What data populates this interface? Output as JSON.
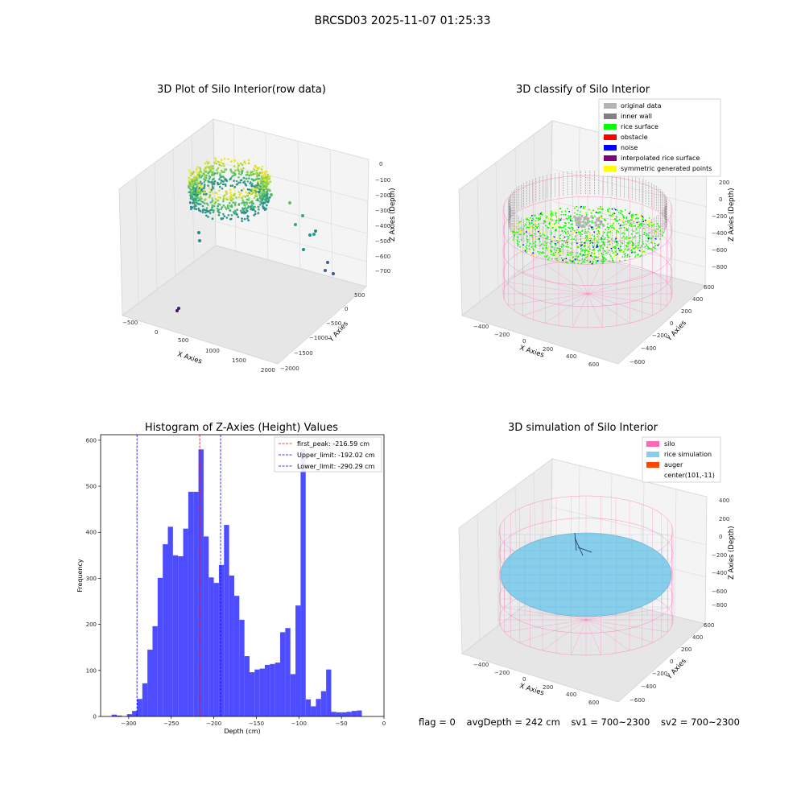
{
  "figure_title": "BRCSD03 2025-11-07 01:25:33",
  "status": {
    "flag": "flag = 0",
    "avg_depth": "avgDepth = 242 cm",
    "sv1": "sv1 = 700~2300",
    "sv2": "sv2 = 700~2300"
  },
  "chart_data": [
    {
      "type": "scatter",
      "title": "3D Plot of Silo Interior(row data)",
      "xlabel": "X Axies",
      "ylabel": "Y Axies",
      "zlabel": "Z Axies (Depth)",
      "x_ticks": [
        "−500",
        "0",
        "500",
        "1000",
        "1500",
        "2000"
      ],
      "y_ticks": [
        "500",
        "0",
        "−500",
        "−1000",
        "−1500",
        "−2000"
      ],
      "z_ticks": [
        "0",
        "−100",
        "−200",
        "−300",
        "−400",
        "−500",
        "−600",
        "−700"
      ],
      "colormap": [
        "#440154",
        "#3b528b",
        "#21918c",
        "#5ec962",
        "#fde725"
      ]
    },
    {
      "type": "scatter",
      "title": "3D classify of Silo Interior",
      "xlabel": "X Axies",
      "ylabel": "Y Axies",
      "zlabel": "Z Axies (Depth)",
      "x_ticks": [
        "−400",
        "−200",
        "0",
        "200",
        "400",
        "600"
      ],
      "y_ticks": [
        "600",
        "400",
        "200",
        "0",
        "−200",
        "−400",
        "−600"
      ],
      "z_ticks": [
        "200",
        "0",
        "−200",
        "−400",
        "−600",
        "−800"
      ],
      "legend": [
        {
          "label": "original data",
          "color": "#b4b4b4"
        },
        {
          "label": "inner wall",
          "color": "#808080"
        },
        {
          "label": "rice surface",
          "color": "#00ff00"
        },
        {
          "label": "obstacle",
          "color": "#ff0000"
        },
        {
          "label": "noise",
          "color": "#0000ff"
        },
        {
          "label": "interpolated rice surface",
          "color": "#800080"
        },
        {
          "label": "symmetric generated points",
          "color": "#ffff00"
        }
      ]
    },
    {
      "type": "bar",
      "title": "Histogram of Z-Axies (Height) Values",
      "xlabel": "Depth (cm)",
      "ylabel": "Frequency",
      "xlim": [
        -333,
        0
      ],
      "ylim": [
        0,
        612
      ],
      "x_ticks": [
        "−300",
        "−250",
        "−200",
        "−150",
        "−100",
        "−50",
        "0"
      ],
      "y_ticks": [
        "0",
        "100",
        "200",
        "300",
        "400",
        "500",
        "600"
      ],
      "bar_color": "#4d4dff",
      "bin_start": -320,
      "bin_width": 6,
      "values": [
        4,
        2,
        0,
        5,
        12,
        38,
        72,
        145,
        196,
        301,
        374,
        412,
        350,
        348,
        408,
        488,
        488,
        580,
        391,
        302,
        290,
        329,
        416,
        306,
        262,
        210,
        131,
        96,
        102,
        104,
        112,
        114,
        117,
        183,
        192,
        92,
        241,
        580,
        37,
        22,
        38,
        55,
        102,
        10,
        9,
        9,
        10,
        12,
        13
      ],
      "lines": [
        {
          "label": "first_peak: -216.59 cm",
          "x": -216.59,
          "color": "#ff0000"
        },
        {
          "label": "Upper_limit: -192.02 cm",
          "x": -192.02,
          "color": "#0000ff"
        },
        {
          "label": "Lower_limit: -290.29 cm",
          "x": -290.29,
          "color": "#0000ff"
        }
      ]
    },
    {
      "type": "scatter",
      "title": "3D simulation of Silo Interior",
      "xlabel": "X Axies",
      "ylabel": "Y Axies",
      "zlabel": "Z Axies (Depth)",
      "x_ticks": [
        "−400",
        "−200",
        "0",
        "200",
        "400",
        "600"
      ],
      "y_ticks": [
        "600",
        "400",
        "200",
        "0",
        "−200",
        "−400",
        "−600"
      ],
      "z_ticks": [
        "400",
        "200",
        "0",
        "−200",
        "−400",
        "−600",
        "−800"
      ],
      "legend": [
        {
          "label": "silo",
          "color": "#ff69b4"
        },
        {
          "label": "rice simulation",
          "color": "#87ceeb"
        },
        {
          "label": "auger",
          "color": "#ff4500"
        },
        {
          "label": "center(101,-11)",
          "color": ""
        }
      ]
    }
  ]
}
